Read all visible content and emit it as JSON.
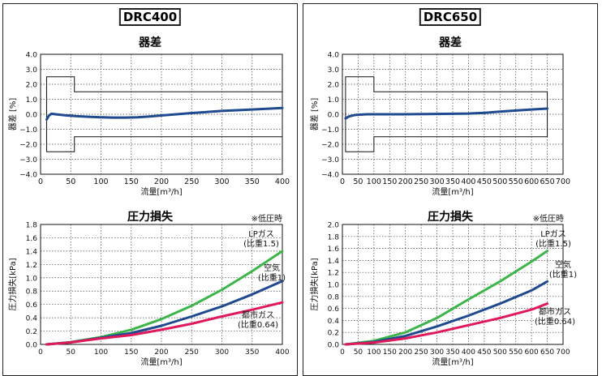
{
  "panels": [
    {
      "model": "DRC400"
    },
    {
      "model": "DRC650"
    }
  ],
  "chart_data": [
    {
      "type": "line",
      "title": "器差",
      "xlabel": "流量[m³/h]",
      "ylabel": "器差 [%]",
      "xlim": [
        0,
        400
      ],
      "ylim": [
        -4.0,
        4.0
      ],
      "xticks": [
        "0",
        "50",
        "100",
        "150",
        "200",
        "250",
        "300",
        "350",
        "400"
      ],
      "yticks": [
        "−4.0",
        "−3.0",
        "−2.0",
        "−1.0",
        "0.0",
        "1.0",
        "2.0",
        "3.0",
        "4.0"
      ],
      "grid": "dotted",
      "tolerance_band": {
        "low_flow": {
          "x": [
            10,
            56
          ],
          "limit": 2.5
        },
        "high_flow": {
          "x": [
            56,
            400
          ],
          "limit": 1.5
        }
      },
      "series": [
        {
          "color": "#1f4a8f",
          "x": [
            10,
            14,
            18,
            25,
            40,
            60,
            80,
            100,
            120,
            140,
            160,
            180,
            200,
            250,
            300,
            350,
            400
          ],
          "y": [
            -0.35,
            -0.08,
            0.03,
            0.0,
            -0.07,
            -0.13,
            -0.17,
            -0.2,
            -0.22,
            -0.22,
            -0.2,
            -0.15,
            -0.08,
            0.08,
            0.22,
            0.32,
            0.42
          ]
        }
      ]
    },
    {
      "type": "line",
      "title": "圧力損失",
      "note": "※低圧時",
      "xlabel": "流量[m³/h]",
      "ylabel": "圧力損失[kPa]",
      "xlim": [
        0,
        400
      ],
      "ylim": [
        0,
        1.8
      ],
      "xticks": [
        "0",
        "50",
        "100",
        "150",
        "200",
        "250",
        "300",
        "350",
        "400"
      ],
      "yticks": [
        "0.0",
        "0.2",
        "0.4",
        "0.6",
        "0.8",
        "1.0",
        "1.2",
        "1.4",
        "1.6",
        "1.8"
      ],
      "grid": "dotted",
      "series": [
        {
          "name": "LPガス\n(比重1.5)",
          "color": "#3db54a",
          "x": [
            10,
            50,
            100,
            150,
            200,
            250,
            300,
            350,
            400
          ],
          "y": [
            0.0,
            0.035,
            0.11,
            0.22,
            0.38,
            0.58,
            0.82,
            1.1,
            1.4
          ]
        },
        {
          "name": "空気\n(比重1)",
          "color": "#1f4a8f",
          "x": [
            10,
            50,
            100,
            150,
            200,
            250,
            300,
            350,
            400
          ],
          "y": [
            0.0,
            0.03,
            0.1,
            0.17,
            0.28,
            0.42,
            0.57,
            0.75,
            0.95
          ]
        },
        {
          "name": "都市ガス\n(比重0.64)",
          "color": "#e0195a",
          "x": [
            10,
            50,
            100,
            150,
            200,
            250,
            300,
            350,
            400
          ],
          "y": [
            0.0,
            0.03,
            0.09,
            0.14,
            0.22,
            0.31,
            0.42,
            0.52,
            0.63
          ]
        }
      ]
    },
    {
      "type": "line",
      "title": "器差",
      "xlabel": "流量[m³/h]",
      "ylabel": "器差 [%]",
      "xlim": [
        0,
        700
      ],
      "ylim": [
        -4.0,
        4.0
      ],
      "xticks": [
        "0",
        "50",
        "100",
        "150",
        "200",
        "250",
        "300",
        "350",
        "400",
        "450",
        "500",
        "550",
        "600",
        "650",
        "700"
      ],
      "yticks": [
        "−4.0",
        "−3.0",
        "−2.0",
        "−1.0",
        "0.0",
        "1.0",
        "2.0",
        "3.0",
        "4.0"
      ],
      "grid": "dotted",
      "tolerance_band": {
        "low_flow": {
          "x": [
            10,
            100
          ],
          "limit": 2.5
        },
        "high_flow": {
          "x": [
            100,
            650
          ],
          "limit": 1.5
        }
      },
      "series": [
        {
          "color": "#1f4a8f",
          "x": [
            10,
            20,
            40,
            60,
            80,
            100,
            200,
            300,
            400,
            450,
            500,
            550,
            600,
            650
          ],
          "y": [
            -0.28,
            -0.15,
            -0.05,
            -0.02,
            0.0,
            0.0,
            0.0,
            0.02,
            0.05,
            0.1,
            0.18,
            0.25,
            0.32,
            0.38
          ]
        }
      ]
    },
    {
      "type": "line",
      "title": "圧力損失",
      "note": "※低圧時",
      "xlabel": "流量[m³/h]",
      "ylabel": "圧力損失[kPa]",
      "xlim": [
        0,
        700
      ],
      "ylim": [
        0,
        2.0
      ],
      "xticks": [
        "0",
        "50",
        "100",
        "150",
        "200",
        "250",
        "300",
        "350",
        "400",
        "450",
        "500",
        "550",
        "600",
        "650",
        "700"
      ],
      "yticks": [
        "0.0",
        "0.2",
        "0.4",
        "0.6",
        "0.8",
        "1.0",
        "1.2",
        "1.4",
        "1.6",
        "1.8",
        "2.0"
      ],
      "grid": "dotted",
      "series": [
        {
          "name": "LPガス\n(比重1.5)",
          "color": "#3db54a",
          "x": [
            10,
            100,
            200,
            300,
            400,
            500,
            600,
            650
          ],
          "y": [
            0.0,
            0.06,
            0.2,
            0.44,
            0.75,
            1.05,
            1.38,
            1.56
          ]
        },
        {
          "name": "空気\n(比重1)",
          "color": "#1f4a8f",
          "x": [
            10,
            100,
            200,
            300,
            400,
            500,
            600,
            650
          ],
          "y": [
            0.0,
            0.04,
            0.14,
            0.3,
            0.48,
            0.68,
            0.9,
            1.05
          ]
        },
        {
          "name": "都市ガス\n(比重0.64)",
          "color": "#e0195a",
          "x": [
            10,
            100,
            200,
            300,
            400,
            500,
            600,
            650
          ],
          "y": [
            0.0,
            0.03,
            0.1,
            0.2,
            0.32,
            0.44,
            0.58,
            0.68
          ]
        }
      ]
    }
  ]
}
